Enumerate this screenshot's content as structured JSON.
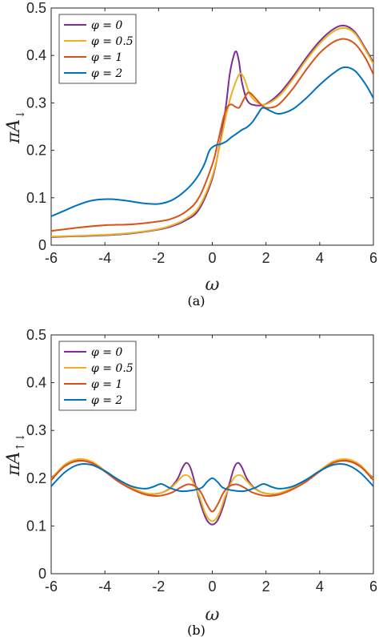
{
  "chart_data": [
    {
      "type": "line",
      "caption": "(a)",
      "xlabel": "ω",
      "ylabel_main": "πA",
      "ylabel_sub": "↓",
      "xlim": [
        -6,
        6
      ],
      "ylim": [
        0,
        0.5
      ],
      "xticks": [
        -6,
        -4,
        -2,
        0,
        2,
        4,
        6
      ],
      "yticks": [
        0,
        0.1,
        0.2,
        0.3,
        0.4,
        0.5
      ],
      "legend_position": "top-left",
      "series": [
        {
          "name": "φ = 0",
          "color": "#7E2F8E",
          "x": [
            -6,
            -5,
            -4,
            -3,
            -2,
            -1.5,
            -1,
            -0.5,
            0,
            0.3,
            0.5,
            0.65,
            0.8,
            0.9,
            1.0,
            1.1,
            1.3,
            1.6,
            2,
            2.5,
            3,
            3.5,
            4,
            4.5,
            4.9,
            5.3,
            5.7,
            6
          ],
          "y": [
            0.017,
            0.019,
            0.021,
            0.025,
            0.033,
            0.04,
            0.052,
            0.075,
            0.14,
            0.22,
            0.29,
            0.36,
            0.4,
            0.408,
            0.385,
            0.345,
            0.305,
            0.295,
            0.298,
            0.32,
            0.355,
            0.395,
            0.43,
            0.455,
            0.463,
            0.45,
            0.415,
            0.385
          ]
        },
        {
          "name": "φ = 0.5",
          "color": "#EDB120",
          "x": [
            -6,
            -5,
            -4,
            -3,
            -2,
            -1.5,
            -1,
            -0.5,
            0,
            0.3,
            0.5,
            0.7,
            0.9,
            1.05,
            1.2,
            1.4,
            1.7,
            2,
            2.5,
            3,
            3.5,
            4,
            4.5,
            4.9,
            5.3,
            5.7,
            6
          ],
          "y": [
            0.018,
            0.02,
            0.022,
            0.026,
            0.034,
            0.042,
            0.055,
            0.08,
            0.145,
            0.215,
            0.27,
            0.315,
            0.348,
            0.362,
            0.35,
            0.318,
            0.3,
            0.297,
            0.315,
            0.35,
            0.39,
            0.425,
            0.45,
            0.458,
            0.447,
            0.412,
            0.382
          ]
        },
        {
          "name": "φ = 1",
          "color": "#D95319",
          "x": [
            -6,
            -5,
            -4,
            -3,
            -2,
            -1.5,
            -1,
            -0.5,
            0,
            0.2,
            0.4,
            0.55,
            0.7,
            0.85,
            1.0,
            1.15,
            1.35,
            1.6,
            1.9,
            2.2,
            2.5,
            3,
            3.5,
            4,
            4.5,
            4.9,
            5.3,
            5.7,
            6
          ],
          "y": [
            0.03,
            0.037,
            0.042,
            0.044,
            0.05,
            0.056,
            0.07,
            0.1,
            0.17,
            0.215,
            0.265,
            0.29,
            0.297,
            0.292,
            0.29,
            0.305,
            0.322,
            0.31,
            0.292,
            0.29,
            0.298,
            0.33,
            0.37,
            0.405,
            0.428,
            0.435,
            0.425,
            0.395,
            0.36
          ]
        },
        {
          "name": "φ = 2",
          "color": "#0072BD",
          "x": [
            -6,
            -5.5,
            -5,
            -4.5,
            -4,
            -3.5,
            -3,
            -2.5,
            -2,
            -1.5,
            -1,
            -0.6,
            -0.3,
            -0.1,
            0.1,
            0.3,
            0.5,
            0.7,
            0.9,
            1.1,
            1.3,
            1.5,
            1.7,
            1.85,
            2,
            2.2,
            2.5,
            3,
            3.5,
            4,
            4.5,
            4.9,
            5.3,
            5.7,
            6
          ],
          "y": [
            0.061,
            0.073,
            0.085,
            0.094,
            0.097,
            0.096,
            0.092,
            0.088,
            0.087,
            0.095,
            0.115,
            0.14,
            0.17,
            0.2,
            0.21,
            0.213,
            0.218,
            0.227,
            0.235,
            0.243,
            0.249,
            0.26,
            0.277,
            0.289,
            0.288,
            0.282,
            0.277,
            0.287,
            0.31,
            0.338,
            0.362,
            0.375,
            0.368,
            0.34,
            0.31
          ]
        }
      ]
    },
    {
      "type": "line",
      "caption": "(b)",
      "xlabel": "ω",
      "ylabel_main": "πA",
      "ylabel_sub": "↑↓",
      "xlim": [
        -6,
        6
      ],
      "ylim": [
        0,
        0.5
      ],
      "xticks": [
        -6,
        -4,
        -2,
        0,
        2,
        4,
        6
      ],
      "yticks": [
        0,
        0.1,
        0.2,
        0.3,
        0.4,
        0.5
      ],
      "legend_position": "top-left",
      "series": [
        {
          "name": "φ = 0",
          "color": "#7E2F8E",
          "x": [
            -6,
            -5.5,
            -5,
            -4.5,
            -4,
            -3.5,
            -3,
            -2.5,
            -2,
            -1.6,
            -1.3,
            -1.1,
            -0.95,
            -0.8,
            -0.6,
            -0.4,
            -0.2,
            0,
            0.2,
            0.4,
            0.6,
            0.8,
            0.95,
            1.1,
            1.3,
            1.6,
            2,
            2.5,
            3,
            3.5,
            4,
            4.5,
            5,
            5.5,
            6
          ],
          "y": [
            0.2,
            0.225,
            0.237,
            0.232,
            0.215,
            0.195,
            0.178,
            0.168,
            0.168,
            0.178,
            0.198,
            0.223,
            0.232,
            0.22,
            0.18,
            0.14,
            0.112,
            0.103,
            0.112,
            0.14,
            0.18,
            0.22,
            0.232,
            0.223,
            0.198,
            0.178,
            0.168,
            0.168,
            0.178,
            0.195,
            0.215,
            0.232,
            0.237,
            0.225,
            0.2
          ]
        },
        {
          "name": "φ = 0.5",
          "color": "#EDB120",
          "x": [
            -6,
            -5.5,
            -5,
            -4.5,
            -4,
            -3.5,
            -3,
            -2.5,
            -2,
            -1.6,
            -1.3,
            -1.05,
            -0.8,
            -0.5,
            -0.25,
            0,
            0.25,
            0.5,
            0.8,
            1.05,
            1.3,
            1.6,
            2,
            2.5,
            3,
            3.5,
            4,
            4.5,
            5,
            5.5,
            6
          ],
          "y": [
            0.198,
            0.228,
            0.24,
            0.235,
            0.216,
            0.196,
            0.18,
            0.169,
            0.168,
            0.177,
            0.193,
            0.206,
            0.2,
            0.165,
            0.125,
            0.11,
            0.125,
            0.165,
            0.2,
            0.206,
            0.193,
            0.177,
            0.168,
            0.169,
            0.18,
            0.196,
            0.216,
            0.235,
            0.24,
            0.228,
            0.198
          ]
        },
        {
          "name": "φ = 1",
          "color": "#D95319",
          "x": [
            -6,
            -5.5,
            -5,
            -4.5,
            -4,
            -3.5,
            -3,
            -2.5,
            -2,
            -1.5,
            -1.2,
            -0.9,
            -0.6,
            -0.4,
            -0.2,
            0,
            0.2,
            0.4,
            0.6,
            0.9,
            1.2,
            1.5,
            2,
            2.5,
            3,
            3.5,
            4,
            4.5,
            5,
            5.5,
            6
          ],
          "y": [
            0.196,
            0.225,
            0.236,
            0.232,
            0.214,
            0.193,
            0.177,
            0.166,
            0.163,
            0.17,
            0.18,
            0.187,
            0.182,
            0.168,
            0.145,
            0.13,
            0.145,
            0.168,
            0.182,
            0.187,
            0.18,
            0.17,
            0.163,
            0.166,
            0.177,
            0.193,
            0.214,
            0.232,
            0.236,
            0.225,
            0.196
          ]
        },
        {
          "name": "φ = 2",
          "color": "#0072BD",
          "x": [
            -6,
            -5.5,
            -5,
            -4.5,
            -4,
            -3.5,
            -3,
            -2.5,
            -2.2,
            -1.9,
            -1.6,
            -1.2,
            -0.8,
            -0.4,
            -0.2,
            0,
            0.2,
            0.4,
            0.8,
            1.2,
            1.6,
            1.9,
            2.2,
            2.5,
            3,
            3.5,
            4,
            4.5,
            5,
            5.5,
            6
          ],
          "y": [
            0.183,
            0.212,
            0.228,
            0.228,
            0.215,
            0.197,
            0.183,
            0.178,
            0.182,
            0.188,
            0.18,
            0.173,
            0.174,
            0.18,
            0.192,
            0.2,
            0.192,
            0.18,
            0.174,
            0.173,
            0.18,
            0.188,
            0.182,
            0.178,
            0.183,
            0.197,
            0.215,
            0.228,
            0.228,
            0.212,
            0.183
          ]
        }
      ]
    }
  ]
}
